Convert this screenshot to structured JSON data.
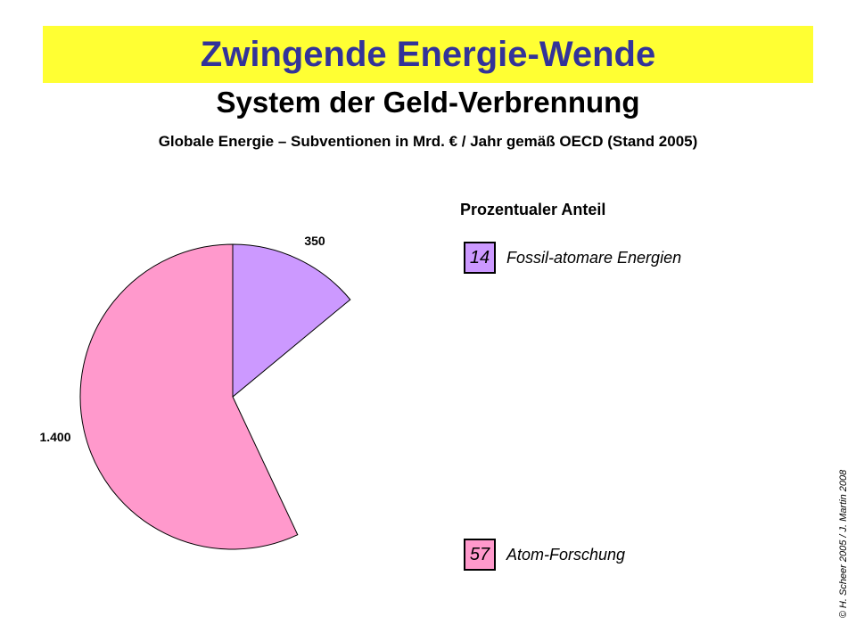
{
  "header": {
    "title": "Zwingende Energie-Wende",
    "subtitle": "System der Geld-Verbrennung",
    "caption": "Globale Energie – Subventionen in Mrd. € / Jahr gemäß OECD (Stand 2005)"
  },
  "chart_data": {
    "type": "pie",
    "slices": [
      {
        "value_label": "350",
        "value": 350,
        "percent": 14,
        "percent_label": "14",
        "name": "Fossil-atomare Energien",
        "color": "#cc99ff"
      },
      {
        "value_label": "1.400",
        "value": 1400,
        "percent": 57,
        "percent_label": "57",
        "name": "Atom-Forschung",
        "color": "#ff99cc"
      }
    ],
    "legend_title": "Prozentualer Anteil",
    "legend_placement": "right"
  },
  "footer": {
    "copyright": "© H. Scheer 2005 / J. Martin 2008"
  }
}
